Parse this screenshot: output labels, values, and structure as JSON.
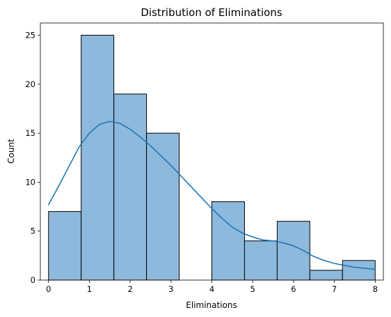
{
  "chart_data": {
    "type": "histogram",
    "title": "Distribution of Eliminations",
    "xlabel": "Eliminations",
    "ylabel": "Count",
    "xlim": [
      -0.2,
      8.2
    ],
    "ylim": [
      0,
      26.25
    ],
    "bins": [
      {
        "start": 0.0,
        "end": 0.8,
        "count": 7
      },
      {
        "start": 0.8,
        "end": 1.6,
        "count": 25
      },
      {
        "start": 1.6,
        "end": 2.4,
        "count": 19
      },
      {
        "start": 2.4,
        "end": 3.2,
        "count": 15
      },
      {
        "start": 3.2,
        "end": 4.0,
        "count": 0
      },
      {
        "start": 4.0,
        "end": 4.8,
        "count": 8
      },
      {
        "start": 4.8,
        "end": 5.6,
        "count": 4
      },
      {
        "start": 5.6,
        "end": 6.4,
        "count": 6
      },
      {
        "start": 6.4,
        "end": 7.2,
        "count": 1
      },
      {
        "start": 7.2,
        "end": 8.0,
        "count": 2
      }
    ],
    "kde": {
      "x": [
        0.0,
        0.25,
        0.5,
        0.75,
        1.0,
        1.25,
        1.5,
        1.75,
        2.0,
        2.25,
        2.5,
        2.75,
        3.0,
        3.25,
        3.5,
        3.75,
        4.0,
        4.25,
        4.5,
        4.75,
        5.0,
        5.25,
        5.5,
        5.75,
        6.0,
        6.25,
        6.5,
        6.75,
        7.0,
        7.25,
        7.5,
        7.75,
        8.0
      ],
      "y": [
        7.7,
        9.6,
        11.6,
        13.6,
        15.0,
        15.9,
        16.2,
        16.0,
        15.4,
        14.6,
        13.7,
        12.7,
        11.7,
        10.6,
        9.5,
        8.4,
        7.3,
        6.3,
        5.4,
        4.8,
        4.4,
        4.1,
        4.0,
        3.8,
        3.5,
        3.0,
        2.4,
        2.0,
        1.7,
        1.5,
        1.3,
        1.2,
        1.1
      ]
    },
    "x_ticks": [
      0,
      1,
      2,
      3,
      4,
      5,
      6,
      7,
      8
    ],
    "y_ticks": [
      0,
      5,
      10,
      15,
      20,
      25
    ],
    "bar_color": "#8db9dc",
    "bar_edge_color": "#000000",
    "line_color": "#1f77b4",
    "grid": false
  }
}
